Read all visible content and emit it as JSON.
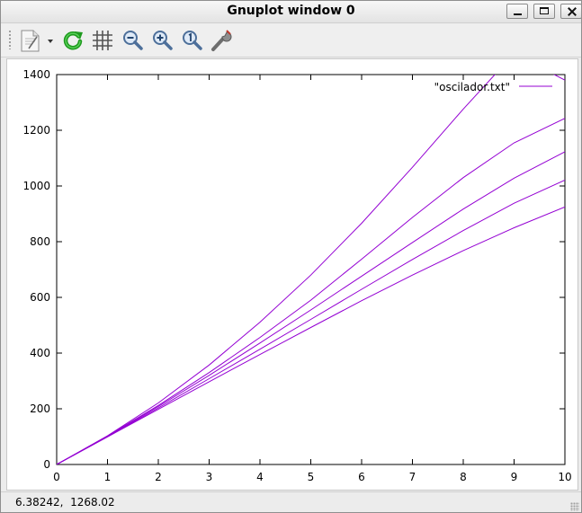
{
  "window": {
    "title": "Gnuplot window 0"
  },
  "toolbar": {
    "items": [
      {
        "name": "export-button",
        "icon": "document-export-icon"
      },
      {
        "name": "replot-button",
        "icon": "refresh-icon"
      },
      {
        "name": "grid-button",
        "icon": "grid-icon"
      },
      {
        "name": "zoom-previous-button",
        "icon": "zoom-out-icon"
      },
      {
        "name": "zoom-next-button",
        "icon": "zoom-in-icon"
      },
      {
        "name": "autoscale-button",
        "icon": "zoom-autoscale-icon"
      },
      {
        "name": "settings-button",
        "icon": "wrench-icon"
      }
    ]
  },
  "status": {
    "coordinates": "6.38242,  1268.02"
  },
  "chart_data": {
    "type": "line",
    "legend": {
      "label": "\"oscilador.txt\"",
      "position": "top-right"
    },
    "color": "#9400d3",
    "xlim": [
      0,
      10
    ],
    "ylim": [
      0,
      1400
    ],
    "xticks": [
      "0",
      "1",
      "2",
      "3",
      "4",
      "5",
      "6",
      "7",
      "8",
      "9",
      "10"
    ],
    "yticks": [
      "0",
      "200",
      "400",
      "600",
      "800",
      "1000",
      "1200",
      "1400"
    ],
    "grid": false,
    "series": [
      {
        "x": [
          0,
          1,
          2,
          3,
          4,
          5,
          6,
          7,
          8,
          9,
          10
        ],
        "values": [
          0,
          103,
          221,
          357,
          511,
          680,
          866,
          1067,
          1276,
          1475,
          1380
        ]
      },
      {
        "x": [
          0,
          1,
          2,
          3,
          4,
          5,
          6,
          7,
          8,
          9,
          10
        ],
        "values": [
          0,
          102,
          212,
          330,
          456,
          590,
          737,
          887,
          1030,
          1155,
          1243
        ]
      },
      {
        "x": [
          0,
          1,
          2,
          3,
          4,
          5,
          6,
          7,
          8,
          9,
          10
        ],
        "values": [
          0,
          101,
          208,
          320,
          436,
          555,
          676,
          797,
          917,
          1028,
          1123
        ]
      },
      {
        "x": [
          0,
          1,
          2,
          3,
          4,
          5,
          6,
          7,
          8,
          9,
          10
        ],
        "values": [
          0,
          100,
          203,
          308,
          414,
          521,
          629,
          736,
          840,
          938,
          1021
        ]
      },
      {
        "x": [
          0,
          1,
          2,
          3,
          4,
          5,
          6,
          7,
          8,
          9,
          10
        ],
        "values": [
          0,
          99,
          198,
          297,
          395,
          492,
          588,
          680,
          768,
          850,
          925
        ]
      }
    ]
  }
}
